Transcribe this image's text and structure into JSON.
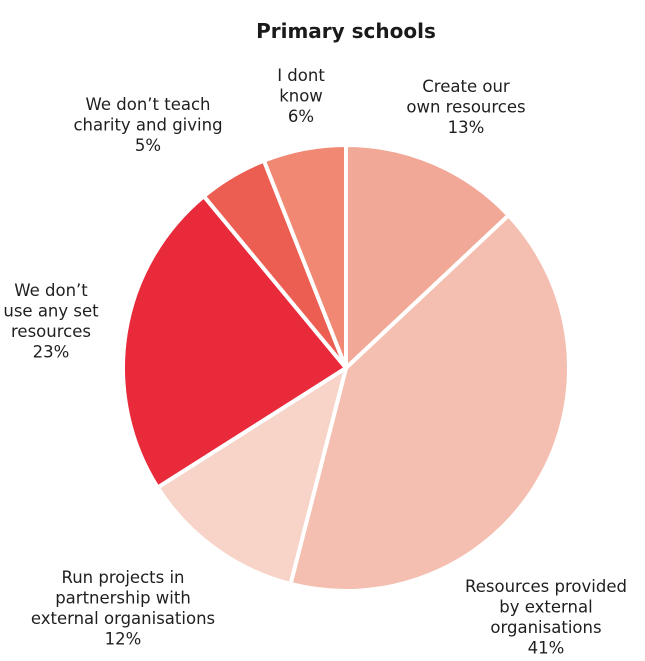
{
  "chart_data": {
    "type": "pie",
    "title": "Primary schools",
    "slices": [
      {
        "label_lines": [
          "Create our",
          "own resources"
        ],
        "value_label": "13%",
        "value": 13,
        "color": "#f2a897"
      },
      {
        "label_lines": [
          "Resources provided",
          "by external",
          "organisations"
        ],
        "value_label": "41%",
        "value": 41,
        "color": "#f4bfb0"
      },
      {
        "label_lines": [
          "Run projects in",
          "partnership with",
          "external organisations"
        ],
        "value_label": "12%",
        "value": 12,
        "color": "#f7d3c8"
      },
      {
        "label_lines": [
          "We don’t",
          "use any set",
          "resources"
        ],
        "value_label": "23%",
        "value": 23,
        "color": "#e82a3a"
      },
      {
        "label_lines": [
          "We don’t teach",
          "charity and giving"
        ],
        "value_label": "5%",
        "value": 5,
        "color": "#ec5d52"
      },
      {
        "label_lines": [
          "I dont",
          "know"
        ],
        "value_label": "6%",
        "value": 6,
        "color": "#f08873"
      }
    ]
  }
}
